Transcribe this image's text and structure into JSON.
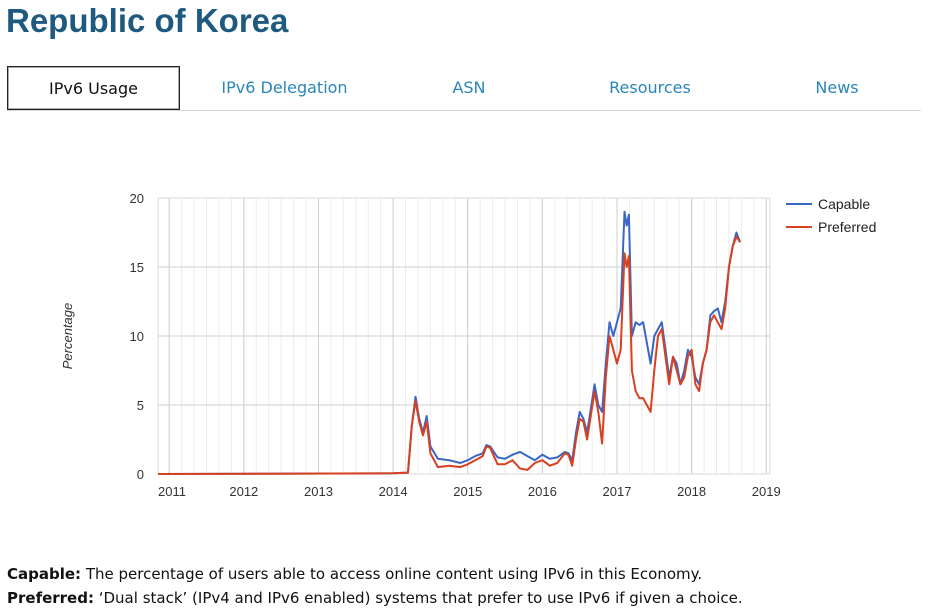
{
  "page": {
    "title": "Republic of Korea"
  },
  "tabs": [
    {
      "label": "IPv6 Usage",
      "active": true
    },
    {
      "label": "IPv6 Delegation",
      "active": false
    },
    {
      "label": "ASN",
      "active": false
    },
    {
      "label": "Resources",
      "active": false
    },
    {
      "label": "News",
      "active": false
    }
  ],
  "colors": {
    "capable": "#3a67c7",
    "preferred": "#d9401f",
    "title": "#1e5a80",
    "link": "#2a86b8"
  },
  "descriptions": {
    "capable_term": "Capable:",
    "capable_text": " The percentage of users able to access online content using IPv6 in this Economy.",
    "preferred_term": "Preferred:",
    "preferred_text": " ‘Dual stack’ (IPv4 and IPv6 enabled) systems that prefer to use IPv6 if given a choice."
  },
  "chart_data": {
    "type": "line",
    "title": "",
    "xlabel": "",
    "ylabel": "Percentage",
    "ylim": [
      0,
      20
    ],
    "xlim": [
      2010.85,
      2019.05
    ],
    "yticks": [
      0,
      5,
      10,
      15,
      20
    ],
    "xtick_labels": [
      "2011",
      "2012",
      "2013",
      "2014",
      "2015",
      "2016",
      "2017",
      "2018",
      "2019"
    ],
    "legend": {
      "position": "right",
      "items": [
        "Capable",
        "Preferred"
      ]
    },
    "series": [
      {
        "name": "Capable",
        "points": [
          [
            2010.85,
            0
          ],
          [
            2014.0,
            0.05
          ],
          [
            2014.2,
            0.1
          ],
          [
            2014.25,
            3.5
          ],
          [
            2014.3,
            5.6
          ],
          [
            2014.35,
            4.0
          ],
          [
            2014.4,
            3.0
          ],
          [
            2014.45,
            4.2
          ],
          [
            2014.5,
            2.0
          ],
          [
            2014.6,
            1.1
          ],
          [
            2014.75,
            1.0
          ],
          [
            2014.9,
            0.8
          ],
          [
            2015.0,
            1.0
          ],
          [
            2015.1,
            1.3
          ],
          [
            2015.2,
            1.5
          ],
          [
            2015.25,
            2.1
          ],
          [
            2015.3,
            2.0
          ],
          [
            2015.4,
            1.2
          ],
          [
            2015.5,
            1.1
          ],
          [
            2015.6,
            1.4
          ],
          [
            2015.7,
            1.6
          ],
          [
            2015.8,
            1.3
          ],
          [
            2015.9,
            1.0
          ],
          [
            2016.0,
            1.4
          ],
          [
            2016.1,
            1.1
          ],
          [
            2016.2,
            1.2
          ],
          [
            2016.3,
            1.6
          ],
          [
            2016.35,
            1.5
          ],
          [
            2016.4,
            1.0
          ],
          [
            2016.45,
            3.0
          ],
          [
            2016.5,
            4.5
          ],
          [
            2016.55,
            4.0
          ],
          [
            2016.6,
            3.0
          ],
          [
            2016.7,
            6.5
          ],
          [
            2016.75,
            5.0
          ],
          [
            2016.8,
            4.5
          ],
          [
            2016.85,
            8.0
          ],
          [
            2016.9,
            11.0
          ],
          [
            2016.95,
            10.0
          ],
          [
            2017.0,
            11.0
          ],
          [
            2017.05,
            12.0
          ],
          [
            2017.1,
            19.0
          ],
          [
            2017.13,
            18.0
          ],
          [
            2017.16,
            18.8
          ],
          [
            2017.2,
            10.0
          ],
          [
            2017.25,
            11.0
          ],
          [
            2017.3,
            10.8
          ],
          [
            2017.35,
            11.0
          ],
          [
            2017.45,
            8.0
          ],
          [
            2017.5,
            10.0
          ],
          [
            2017.55,
            10.5
          ],
          [
            2017.6,
            11.0
          ],
          [
            2017.65,
            9.0
          ],
          [
            2017.7,
            7.0
          ],
          [
            2017.75,
            8.5
          ],
          [
            2017.8,
            8.0
          ],
          [
            2017.85,
            6.5
          ],
          [
            2017.9,
            7.5
          ],
          [
            2017.95,
            9.0
          ],
          [
            2018.0,
            8.5
          ],
          [
            2018.05,
            7.0
          ],
          [
            2018.1,
            6.5
          ],
          [
            2018.15,
            8.0
          ],
          [
            2018.2,
            9.0
          ],
          [
            2018.25,
            11.5
          ],
          [
            2018.3,
            11.8
          ],
          [
            2018.35,
            12.0
          ],
          [
            2018.4,
            11.0
          ],
          [
            2018.45,
            12.5
          ],
          [
            2018.5,
            15.0
          ],
          [
            2018.55,
            16.5
          ],
          [
            2018.6,
            17.5
          ],
          [
            2018.65,
            16.8
          ]
        ]
      },
      {
        "name": "Preferred",
        "points": [
          [
            2010.85,
            0
          ],
          [
            2014.0,
            0.05
          ],
          [
            2014.2,
            0.1
          ],
          [
            2014.25,
            3.5
          ],
          [
            2014.3,
            5.3
          ],
          [
            2014.35,
            3.8
          ],
          [
            2014.4,
            2.8
          ],
          [
            2014.45,
            3.8
          ],
          [
            2014.5,
            1.5
          ],
          [
            2014.6,
            0.5
          ],
          [
            2014.75,
            0.6
          ],
          [
            2014.9,
            0.5
          ],
          [
            2015.0,
            0.7
          ],
          [
            2015.1,
            1.0
          ],
          [
            2015.2,
            1.3
          ],
          [
            2015.25,
            2.0
          ],
          [
            2015.3,
            1.9
          ],
          [
            2015.4,
            0.7
          ],
          [
            2015.5,
            0.7
          ],
          [
            2015.6,
            1.0
          ],
          [
            2015.7,
            0.4
          ],
          [
            2015.8,
            0.3
          ],
          [
            2015.9,
            0.8
          ],
          [
            2016.0,
            1.0
          ],
          [
            2016.1,
            0.6
          ],
          [
            2016.2,
            0.8
          ],
          [
            2016.3,
            1.5
          ],
          [
            2016.35,
            1.4
          ],
          [
            2016.4,
            0.6
          ],
          [
            2016.45,
            2.5
          ],
          [
            2016.5,
            4.0
          ],
          [
            2016.55,
            3.8
          ],
          [
            2016.6,
            2.5
          ],
          [
            2016.7,
            6.0
          ],
          [
            2016.75,
            4.5
          ],
          [
            2016.8,
            2.2
          ],
          [
            2016.85,
            7.0
          ],
          [
            2016.9,
            10.0
          ],
          [
            2016.95,
            9.0
          ],
          [
            2017.0,
            8.0
          ],
          [
            2017.05,
            9.0
          ],
          [
            2017.1,
            16.0
          ],
          [
            2017.13,
            15.0
          ],
          [
            2017.16,
            15.8
          ],
          [
            2017.2,
            7.5
          ],
          [
            2017.25,
            6.0
          ],
          [
            2017.3,
            5.5
          ],
          [
            2017.35,
            5.5
          ],
          [
            2017.45,
            4.5
          ],
          [
            2017.5,
            7.5
          ],
          [
            2017.55,
            10.0
          ],
          [
            2017.6,
            10.5
          ],
          [
            2017.65,
            8.5
          ],
          [
            2017.7,
            6.5
          ],
          [
            2017.75,
            8.5
          ],
          [
            2017.8,
            7.5
          ],
          [
            2017.85,
            6.5
          ],
          [
            2017.9,
            7.0
          ],
          [
            2017.95,
            8.5
          ],
          [
            2018.0,
            9.0
          ],
          [
            2018.05,
            6.5
          ],
          [
            2018.1,
            6.0
          ],
          [
            2018.15,
            8.0
          ],
          [
            2018.2,
            9.0
          ],
          [
            2018.25,
            11.0
          ],
          [
            2018.3,
            11.5
          ],
          [
            2018.35,
            11.0
          ],
          [
            2018.4,
            10.5
          ],
          [
            2018.45,
            12.0
          ],
          [
            2018.5,
            15.0
          ],
          [
            2018.55,
            16.5
          ],
          [
            2018.6,
            17.2
          ],
          [
            2018.65,
            16.8
          ]
        ]
      }
    ]
  }
}
